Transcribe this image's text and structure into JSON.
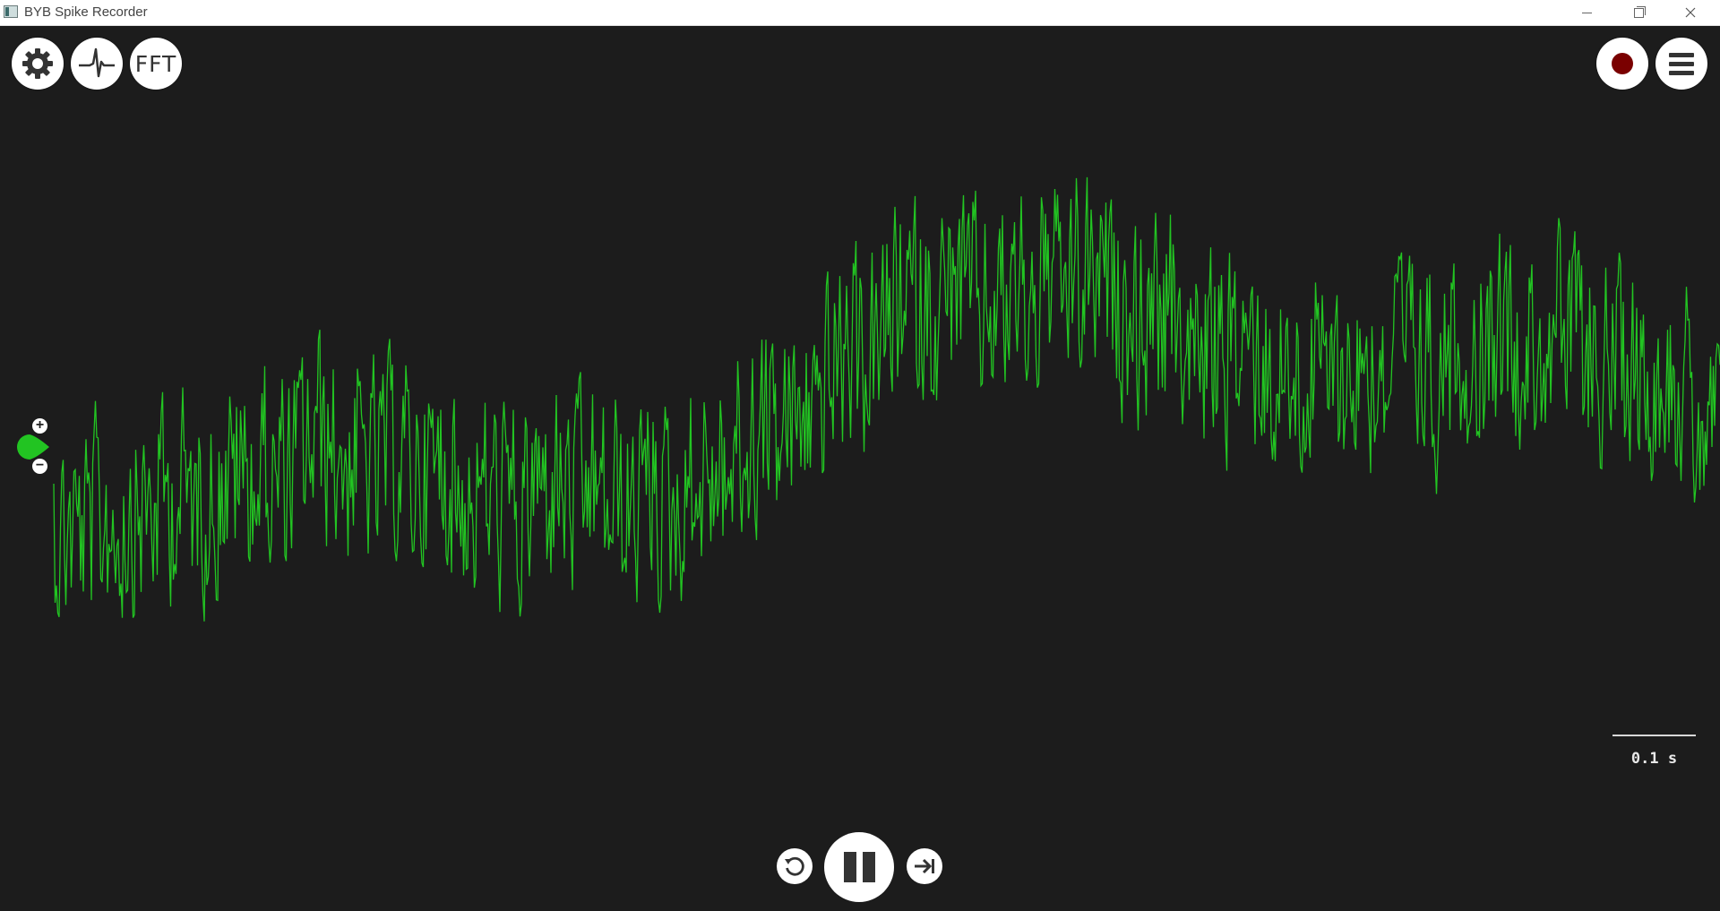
{
  "window": {
    "title": "BYB Spike Recorder",
    "controls": [
      "minimize",
      "restore",
      "close"
    ]
  },
  "toolbar_left": {
    "settings_icon": "gear-icon",
    "threshold_icon": "spike-waveform-icon",
    "fft_label": "FFT"
  },
  "toolbar_right": {
    "record_icon": "record-icon",
    "record_color": "#7a0000",
    "menu_icon": "hamburger-menu-icon"
  },
  "channel": {
    "color": "#22c422",
    "zoom_in_label": "+",
    "zoom_out_label": "−"
  },
  "timescale": {
    "label": "0.1 s"
  },
  "playback": {
    "rewind_icon": "rewind-icon",
    "pause_icon": "pause-icon",
    "forward_icon": "skip-forward-icon"
  }
}
